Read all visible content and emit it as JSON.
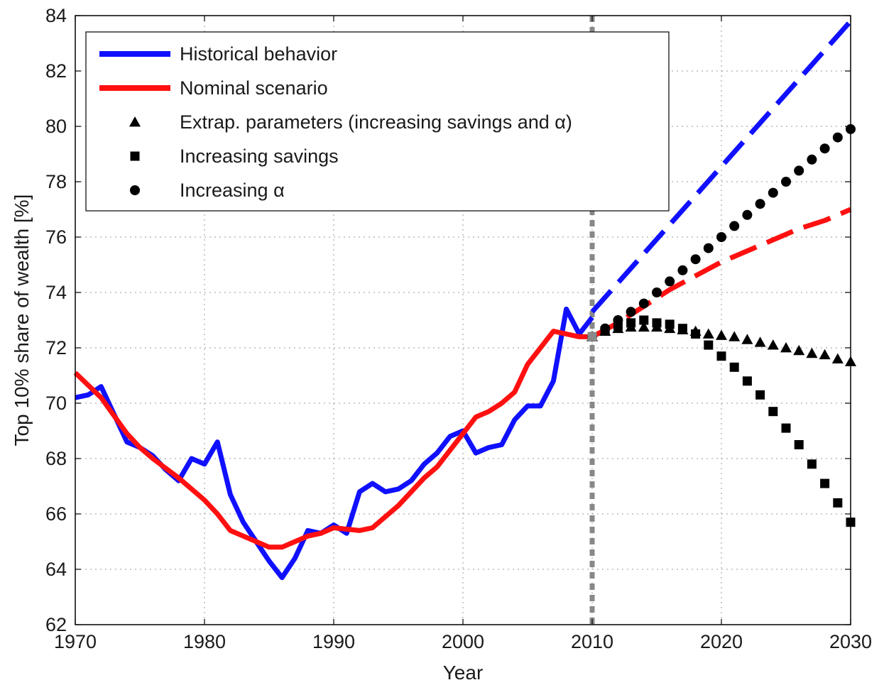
{
  "chart_data": {
    "type": "line",
    "xlabel": "Year",
    "ylabel": "Top 10% share of wealth [%]",
    "xlim": [
      1970,
      2030
    ],
    "ylim": [
      62,
      84
    ],
    "xticks": [
      1970,
      1980,
      1990,
      2000,
      2010,
      2020,
      2030
    ],
    "yticks": [
      62,
      64,
      66,
      68,
      70,
      72,
      74,
      76,
      78,
      80,
      82,
      84
    ],
    "grid": true,
    "legend_position": "top-left",
    "vertical_marker": {
      "x": 2010,
      "style": "dotted",
      "color": "#888888"
    },
    "series": [
      {
        "name": "Historical behavior",
        "style": "line",
        "color": "#1010ff",
        "x": [
          1970,
          1971,
          1972,
          1973,
          1974,
          1975,
          1976,
          1977,
          1978,
          1979,
          1980,
          1981,
          1982,
          1983,
          1984,
          1985,
          1986,
          1987,
          1988,
          1989,
          1990,
          1991,
          1992,
          1993,
          1994,
          1995,
          1996,
          1997,
          1998,
          1999,
          2000,
          2001,
          2002,
          2003,
          2004,
          2005,
          2006,
          2007,
          2008,
          2009,
          2010
        ],
        "y": [
          70.2,
          70.3,
          70.6,
          69.6,
          68.6,
          68.4,
          68.1,
          67.6,
          67.2,
          68.0,
          67.8,
          68.6,
          66.7,
          65.7,
          65.0,
          64.3,
          63.7,
          64.4,
          65.4,
          65.3,
          65.6,
          65.3,
          66.8,
          67.1,
          66.8,
          66.9,
          67.2,
          67.8,
          68.2,
          68.8,
          69.0,
          68.2,
          68.4,
          68.5,
          69.4,
          69.9,
          69.9,
          70.8,
          73.4,
          72.5,
          73.1
        ]
      },
      {
        "name": "",
        "style": "dashed",
        "color": "#1010ff",
        "x": [
          2010,
          2030
        ],
        "y": [
          73.3,
          83.8
        ]
      },
      {
        "name": "Nominal scenario",
        "style": "line",
        "color": "#ff1010",
        "x": [
          1970,
          1972,
          1974,
          1975,
          1976,
          1978,
          1980,
          1981,
          1982,
          1983,
          1984,
          1985,
          1986,
          1987,
          1988,
          1989,
          1990,
          1992,
          1993,
          1994,
          1995,
          1996,
          1997,
          1998,
          1999,
          2000,
          2001,
          2002,
          2003,
          2004,
          2005,
          2006,
          2007,
          2008,
          2009,
          2010
        ],
        "y": [
          71.1,
          70.2,
          68.9,
          68.4,
          68.0,
          67.3,
          66.5,
          66.0,
          65.4,
          65.2,
          65.0,
          64.8,
          64.8,
          65.0,
          65.2,
          65.3,
          65.5,
          65.4,
          65.5,
          65.9,
          66.3,
          66.8,
          67.3,
          67.7,
          68.3,
          68.9,
          69.5,
          69.7,
          70.0,
          70.4,
          71.4,
          72.0,
          72.6,
          72.5,
          72.4,
          72.4
        ]
      },
      {
        "name": "",
        "style": "dashed",
        "color": "#ff1010",
        "x": [
          2010,
          2012,
          2014,
          2016,
          2018,
          2020,
          2022,
          2024,
          2026,
          2028,
          2030
        ],
        "y": [
          72.4,
          72.9,
          73.5,
          74.1,
          74.6,
          75.1,
          75.5,
          75.9,
          76.3,
          76.6,
          77.0
        ]
      },
      {
        "name": "Extrap. parameters (increasing savings and α)",
        "style": "marker",
        "marker": "triangle",
        "color": "#000000",
        "x": [
          2010,
          2011,
          2012,
          2013,
          2014,
          2015,
          2016,
          2017,
          2018,
          2019,
          2020,
          2021,
          2022,
          2023,
          2024,
          2025,
          2026,
          2027,
          2028,
          2029,
          2030
        ],
        "y": [
          72.4,
          72.6,
          72.7,
          72.75,
          72.75,
          72.75,
          72.7,
          72.65,
          72.6,
          72.5,
          72.45,
          72.4,
          72.3,
          72.2,
          72.1,
          72.0,
          71.9,
          71.8,
          71.75,
          71.6,
          71.5
        ]
      },
      {
        "name": "Increasing savings",
        "style": "marker",
        "marker": "square",
        "color": "#000000",
        "x": [
          2010,
          2011,
          2012,
          2013,
          2014,
          2015,
          2016,
          2017,
          2018,
          2019,
          2020,
          2021,
          2022,
          2023,
          2024,
          2025,
          2026,
          2027,
          2028,
          2029,
          2030
        ],
        "y": [
          72.4,
          72.6,
          72.8,
          72.9,
          73.0,
          72.9,
          72.85,
          72.7,
          72.5,
          72.1,
          71.7,
          71.3,
          70.8,
          70.3,
          69.7,
          69.1,
          68.5,
          67.8,
          67.1,
          66.4,
          65.7
        ]
      },
      {
        "name": "Increasing α",
        "style": "marker",
        "marker": "circle",
        "color": "#000000",
        "x": [
          2010,
          2011,
          2012,
          2013,
          2014,
          2015,
          2016,
          2017,
          2018,
          2019,
          2020,
          2021,
          2022,
          2023,
          2024,
          2025,
          2026,
          2027,
          2028,
          2029,
          2030
        ],
        "y": [
          72.4,
          72.7,
          73.0,
          73.3,
          73.6,
          74.0,
          74.4,
          74.8,
          75.2,
          75.6,
          76.0,
          76.4,
          76.8,
          77.2,
          77.6,
          78.0,
          78.4,
          78.8,
          79.2,
          79.6,
          79.9
        ]
      }
    ],
    "legend": [
      {
        "label": "Historical behavior",
        "kind": "line",
        "color": "#1010ff"
      },
      {
        "label": "Nominal scenario",
        "kind": "line",
        "color": "#ff1010"
      },
      {
        "label": "Extrap. parameters (increasing savings and α)",
        "kind": "triangle",
        "color": "#000000"
      },
      {
        "label": "Increasing savings",
        "kind": "square",
        "color": "#000000"
      },
      {
        "label": "Increasing α",
        "kind": "circle",
        "color": "#000000"
      }
    ]
  }
}
